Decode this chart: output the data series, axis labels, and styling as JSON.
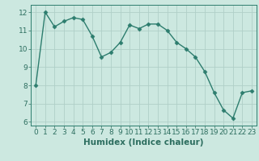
{
  "x": [
    0,
    1,
    2,
    3,
    4,
    5,
    6,
    7,
    8,
    9,
    10,
    11,
    12,
    13,
    14,
    15,
    16,
    17,
    18,
    19,
    20,
    21,
    22,
    23
  ],
  "y": [
    8.0,
    12.0,
    11.2,
    11.5,
    11.7,
    11.6,
    10.7,
    9.55,
    9.8,
    10.35,
    11.3,
    11.1,
    11.35,
    11.35,
    11.0,
    10.35,
    10.0,
    9.55,
    8.75,
    7.6,
    6.65,
    6.2,
    7.6,
    7.7
  ],
  "line_color": "#2d7d6e",
  "marker": "D",
  "marker_size": 2.5,
  "bg_color": "#cce8e0",
  "grid_color": "#b0cfc8",
  "xlabel": "Humidex (Indice chaleur)",
  "ylim": [
    5.8,
    12.4
  ],
  "xlim": [
    -0.5,
    23.5
  ],
  "yticks": [
    6,
    7,
    8,
    9,
    10,
    11,
    12
  ],
  "xticks": [
    0,
    1,
    2,
    3,
    4,
    5,
    6,
    7,
    8,
    9,
    10,
    11,
    12,
    13,
    14,
    15,
    16,
    17,
    18,
    19,
    20,
    21,
    22,
    23
  ],
  "xlabel_fontsize": 7.5,
  "tick_fontsize": 6.5,
  "tick_color": "#2d6e60",
  "axis_color": "#2d7d6e",
  "linewidth": 1.0
}
